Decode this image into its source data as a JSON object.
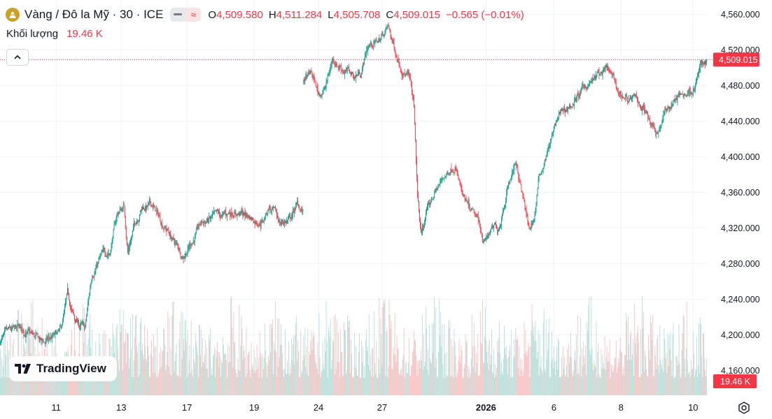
{
  "header": {
    "symbol_title": "Vàng / Đô la Mỹ · 30 · ICE",
    "ohlc": [
      {
        "key": "O",
        "value": "4,509.580"
      },
      {
        "key": "H",
        "value": "4,511.284"
      },
      {
        "key": "L",
        "value": "4,505.708"
      },
      {
        "key": "C",
        "value": "4,509.015"
      }
    ],
    "change": "−0.565 (−0.01%)",
    "volume_label": "Khối lượng",
    "volume_value": "19.46 K"
  },
  "brand": "TradingView",
  "icons": {
    "logo": "gold-bars-icon",
    "collapse": "chevron-up-icon",
    "settings": "settings-icon"
  },
  "colors": {
    "up": "#089981",
    "down": "#f23645",
    "vol_up": "#a7d7cf",
    "vol_down": "#f5b4b4",
    "grid": "#f0f3fa",
    "text": "#131722"
  },
  "chart_data": {
    "type": "candlestick",
    "title": "Vàng / Đô la Mỹ · 30 · ICE",
    "xlabel": "",
    "ylabel": "",
    "ylim": [
      4132,
      4576
    ],
    "y_ticks": [
      4160,
      4200,
      4240,
      4280,
      4320,
      4360,
      4400,
      4440,
      4480,
      4520,
      4560
    ],
    "y_tick_labels": [
      "4,160.000",
      "4,200.000",
      "4,240.000",
      "4,280.000",
      "4,320.000",
      "4,360.000",
      "4,400.000",
      "4,440.000",
      "4,480.000",
      "4,520.000",
      "4,560.000"
    ],
    "x_tick_labels": [
      "11",
      "13",
      "17",
      "19",
      "24",
      "27",
      "2026",
      "6",
      "8",
      "10"
    ],
    "x_tick_bold": [
      false,
      false,
      false,
      false,
      false,
      false,
      true,
      false,
      false,
      false
    ],
    "x_tick_bar_index": [
      79,
      171,
      264,
      359,
      450,
      540,
      687,
      783,
      878,
      980
    ],
    "n_bars": 1000,
    "gap_after_bar": 420,
    "price_keypoints": [
      [
        0,
        4195
      ],
      [
        30,
        4205
      ],
      [
        60,
        4190
      ],
      [
        85,
        4200
      ],
      [
        95,
        4240
      ],
      [
        105,
        4215
      ],
      [
        120,
        4205
      ],
      [
        130,
        4270
      ],
      [
        140,
        4285
      ],
      [
        155,
        4295
      ],
      [
        165,
        4335
      ],
      [
        175,
        4345
      ],
      [
        180,
        4295
      ],
      [
        190,
        4325
      ],
      [
        200,
        4345
      ],
      [
        215,
        4345
      ],
      [
        225,
        4330
      ],
      [
        235,
        4320
      ],
      [
        245,
        4305
      ],
      [
        258,
        4290
      ],
      [
        270,
        4305
      ],
      [
        285,
        4325
      ],
      [
        300,
        4330
      ],
      [
        315,
        4330
      ],
      [
        330,
        4340
      ],
      [
        345,
        4335
      ],
      [
        360,
        4330
      ],
      [
        372,
        4330
      ],
      [
        380,
        4345
      ],
      [
        395,
        4325
      ],
      [
        410,
        4330
      ],
      [
        420,
        4345
      ],
      [
        428,
        4338
      ],
      [
        429,
        4485
      ],
      [
        440,
        4492
      ],
      [
        450,
        4470
      ],
      [
        460,
        4478
      ],
      [
        470,
        4510
      ],
      [
        485,
        4500
      ],
      [
        500,
        4490
      ],
      [
        510,
        4495
      ],
      [
        520,
        4525
      ],
      [
        535,
        4530
      ],
      [
        548,
        4545
      ],
      [
        560,
        4515
      ],
      [
        570,
        4500
      ],
      [
        578,
        4490
      ],
      [
        585,
        4455
      ],
      [
        590,
        4355
      ],
      [
        595,
        4310
      ],
      [
        602,
        4335
      ],
      [
        615,
        4360
      ],
      [
        630,
        4380
      ],
      [
        643,
        4395
      ],
      [
        655,
        4350
      ],
      [
        665,
        4335
      ],
      [
        675,
        4325
      ],
      [
        685,
        4305
      ],
      [
        692,
        4315
      ],
      [
        705,
        4320
      ],
      [
        718,
        4370
      ],
      [
        730,
        4395
      ],
      [
        740,
        4350
      ],
      [
        748,
        4315
      ],
      [
        755,
        4330
      ],
      [
        762,
        4375
      ],
      [
        775,
        4410
      ],
      [
        790,
        4445
      ],
      [
        810,
        4460
      ],
      [
        830,
        4480
      ],
      [
        845,
        4490
      ],
      [
        860,
        4495
      ],
      [
        875,
        4470
      ],
      [
        890,
        4465
      ],
      [
        905,
        4460
      ],
      [
        918,
        4445
      ],
      [
        930,
        4430
      ],
      [
        940,
        4450
      ],
      [
        955,
        4465
      ],
      [
        970,
        4470
      ],
      [
        982,
        4480
      ],
      [
        990,
        4500
      ],
      [
        999,
        4509
      ]
    ],
    "last_price": 4509.015,
    "last_price_label": "4,509.015",
    "volume_last_label": "19.46 K",
    "seed": 7
  }
}
